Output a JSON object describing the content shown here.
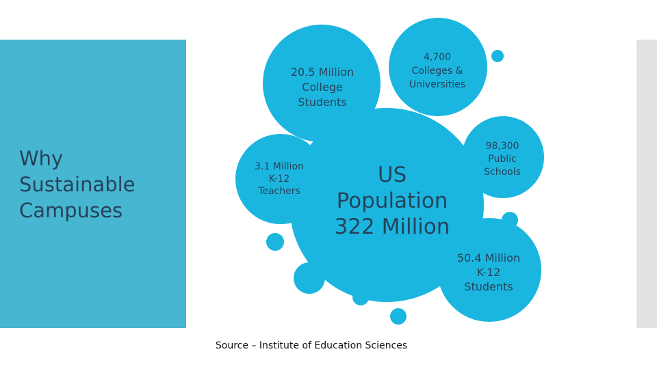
{
  "slide": {
    "title": [
      "Why",
      "Sustainable",
      "Campuses"
    ],
    "center": [
      "US",
      "Population",
      "322 Million"
    ],
    "bubbles": [
      [
        "20.5 Million",
        "College",
        "Students"
      ],
      [
        "4,700",
        "Colleges &",
        "Universities"
      ],
      [
        "3.1 Million",
        "K-12",
        "Teachers"
      ],
      [
        "98,300",
        "Public",
        "Schools"
      ],
      [
        "50.4 Million",
        "K-12",
        "Students"
      ]
    ],
    "source": "Source – Institute of Education Sciences"
  }
}
